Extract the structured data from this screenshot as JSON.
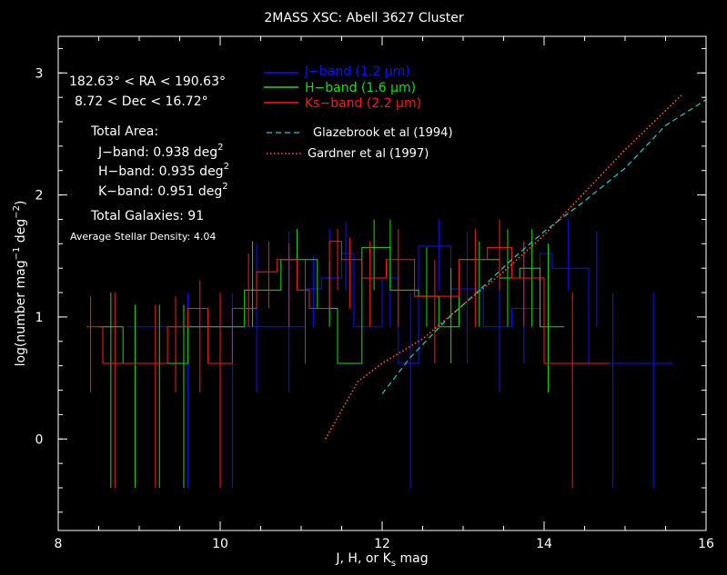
{
  "chart_data": {
    "type": "line",
    "title": "2MASS XSC: Abell 3627 Cluster",
    "xlabel_parts": {
      "pre": "J, H, or K",
      "sub": "s",
      "post": " mag"
    },
    "ylabel_parts": {
      "pre": "log(number mag",
      "sup1": "−1",
      "mid": " deg",
      "sup2": "−2",
      "post": ")"
    },
    "xlim": [
      8,
      16
    ],
    "ylim": [
      -0.75,
      3.3
    ],
    "x_ticks": [
      8,
      10,
      12,
      14,
      16
    ],
    "x_tick_labels": [
      "8",
      "10",
      "12",
      "14",
      "16"
    ],
    "y_ticks": [
      0,
      1,
      2,
      3
    ],
    "y_tick_labels": [
      "0",
      "1",
      "2",
      "3"
    ],
    "x_minor_step": 0.5,
    "y_minor_step": 0.2,
    "colors": {
      "J": "#1010ff",
      "H": "#10e010",
      "K": "#ff1a1a",
      "glazebrook": "#22cccc",
      "gardner": "#ff6020",
      "axes": "#ffffff"
    },
    "info": {
      "ra_text": "182.63° < RA < 190.63°",
      "dec_text": "8.72 < Dec < 16.72°",
      "area_title": "Total Area:",
      "area_j": "J−band: 0.938 deg",
      "area_h": "H−band: 0.935 deg",
      "area_k": "K−band: 0.951 deg",
      "area_unit_sup": "2",
      "total_galaxies": "Total Galaxies: 91",
      "stellar_density": "Average Stellar Density: 4.04"
    },
    "legend": {
      "j": "J−band (1.2 μm)",
      "h": "H−band (1.6 μm)",
      "k": "Ks−band (2.2 μm)",
      "glazebrook": "Glazebrook et al (1994)",
      "gardner": "Gardner et al (1997)"
    },
    "series": [
      {
        "name": "J-band",
        "key": "J",
        "style": "step",
        "edges": [
          8.85,
          9.4,
          10.3,
          10.65,
          11.05,
          11.25,
          11.5,
          11.65,
          12.0,
          12.2,
          12.45,
          12.85,
          13.25,
          13.6,
          13.95,
          14.1,
          14.55,
          14.95,
          15.6
        ],
        "values": [
          0.92,
          0.92,
          0.92,
          0.92,
          1.23,
          1.32,
          1.52,
          0.92,
          1.32,
          0.62,
          1.58,
          1.23,
          0.92,
          1.07,
          1.52,
          1.4,
          0.62,
          0.62
        ],
        "errors": [
          {
            "x": 9.6,
            "lo": -0.4,
            "hi": 1.2
          },
          {
            "x": 10.15,
            "lo": -0.4,
            "hi": 1.2
          },
          {
            "x": 10.45,
            "lo": 0.38,
            "hi": 1.6
          },
          {
            "x": 10.85,
            "lo": 0.38,
            "hi": 1.7
          },
          {
            "x": 11.15,
            "lo": 0.92,
            "hi": 1.5
          },
          {
            "x": 11.35,
            "lo": 0.92,
            "hi": 1.72
          },
          {
            "x": 11.55,
            "lo": 1.22,
            "hi": 1.78
          },
          {
            "x": 12.1,
            "lo": 0.92,
            "hi": 1.62
          },
          {
            "x": 12.35,
            "lo": -0.4,
            "hi": 1.2
          },
          {
            "x": 12.7,
            "lo": 1.22,
            "hi": 1.8
          },
          {
            "x": 13.05,
            "lo": 0.62,
            "hi": 1.7
          },
          {
            "x": 13.45,
            "lo": 0.38,
            "hi": 1.6
          },
          {
            "x": 13.75,
            "lo": 0.62,
            "hi": 1.62
          },
          {
            "x": 14.3,
            "lo": 1.22,
            "hi": 1.8
          },
          {
            "x": 14.65,
            "lo": 0.92,
            "hi": 1.7
          },
          {
            "x": 14.85,
            "lo": -0.4,
            "hi": 1.2
          },
          {
            "x": 15.35,
            "lo": -0.4,
            "hi": 1.2
          }
        ]
      },
      {
        "name": "H-band",
        "key": "H",
        "style": "step",
        "edges": [
          8.5,
          8.8,
          9.6,
          10.3,
          10.75,
          11.2,
          11.45,
          11.75,
          12.1,
          12.45,
          12.7,
          12.95,
          13.45,
          13.7,
          13.95,
          14.25
        ],
        "values": [
          0.92,
          0.62,
          0.92,
          1.22,
          1.47,
          1.07,
          0.62,
          1.57,
          1.22,
          1.17,
          0.92,
          1.47,
          1.32,
          1.4,
          0.92
        ],
        "errors": [
          {
            "x": 8.65,
            "lo": -0.4,
            "hi": 1.2
          },
          {
            "x": 8.95,
            "lo": -0.4,
            "hi": 1.1
          },
          {
            "x": 9.25,
            "lo": -0.4,
            "hi": 1.1
          },
          {
            "x": 9.55,
            "lo": -0.4,
            "hi": 1.1
          },
          {
            "x": 10.4,
            "lo": 0.92,
            "hi": 1.62
          },
          {
            "x": 10.95,
            "lo": 1.22,
            "hi": 1.72
          },
          {
            "x": 11.35,
            "lo": 0.92,
            "hi": 1.45
          },
          {
            "x": 11.9,
            "lo": 1.22,
            "hi": 1.8
          },
          {
            "x": 12.1,
            "lo": 1.22,
            "hi": 1.8
          },
          {
            "x": 12.55,
            "lo": 0.92,
            "hi": 1.57
          },
          {
            "x": 12.85,
            "lo": 0.62,
            "hi": 1.4
          },
          {
            "x": 13.2,
            "lo": 0.92,
            "hi": 1.62
          },
          {
            "x": 13.55,
            "lo": 0.92,
            "hi": 1.72
          },
          {
            "x": 13.85,
            "lo": 0.92,
            "hi": 1.72
          },
          {
            "x": 14.05,
            "lo": 0.38,
            "hi": 1.6
          }
        ]
      },
      {
        "name": "Ks-band",
        "key": "K",
        "style": "step",
        "edges": [
          8.35,
          8.55,
          9.35,
          9.6,
          9.85,
          10.15,
          10.45,
          10.7,
          10.95,
          11.1,
          11.35,
          11.5,
          11.75,
          12.05,
          12.4,
          12.95,
          13.3,
          13.6,
          14.0,
          14.8
        ],
        "values": [
          0.92,
          0.62,
          0.92,
          1.07,
          0.62,
          1.07,
          1.37,
          1.47,
          1.22,
          1.07,
          1.62,
          1.47,
          1.32,
          1.47,
          1.17,
          1.47,
          1.57,
          1.32,
          0.62
        ],
        "errors": [
          {
            "x": 8.4,
            "lo": 0.38,
            "hi": 1.17
          },
          {
            "x": 8.7,
            "lo": -0.4,
            "hi": 1.2
          },
          {
            "x": 9.2,
            "lo": -0.4,
            "hi": 1.1
          },
          {
            "x": 9.45,
            "lo": 0.38,
            "hi": 1.17
          },
          {
            "x": 9.75,
            "lo": 0.38,
            "hi": 1.3
          },
          {
            "x": 10.0,
            "lo": -0.4,
            "hi": 1.2
          },
          {
            "x": 10.35,
            "lo": 0.92,
            "hi": 1.52
          },
          {
            "x": 10.6,
            "lo": 1.07,
            "hi": 1.62
          },
          {
            "x": 10.85,
            "lo": 0.92,
            "hi": 1.6
          },
          {
            "x": 11.05,
            "lo": 0.62,
            "hi": 1.47
          },
          {
            "x": 11.45,
            "lo": 1.22,
            "hi": 1.72
          },
          {
            "x": 11.6,
            "lo": 1.07,
            "hi": 1.65
          },
          {
            "x": 11.85,
            "lo": 0.92,
            "hi": 1.62
          },
          {
            "x": 12.2,
            "lo": 0.92,
            "hi": 1.72
          },
          {
            "x": 12.65,
            "lo": 0.62,
            "hi": 1.47
          },
          {
            "x": 13.15,
            "lo": 0.92,
            "hi": 1.72
          },
          {
            "x": 13.45,
            "lo": 1.22,
            "hi": 1.8
          },
          {
            "x": 13.75,
            "lo": 0.92,
            "hi": 1.62
          },
          {
            "x": 14.35,
            "lo": -0.4,
            "hi": 1.2
          }
        ]
      },
      {
        "name": "Glazebrook et al (1994)",
        "key": "glazebrook",
        "style": "dashed",
        "points": [
          [
            12.0,
            0.37
          ],
          [
            12.35,
            0.67
          ],
          [
            12.8,
            0.98
          ],
          [
            13.2,
            1.22
          ],
          [
            13.6,
            1.47
          ],
          [
            14.0,
            1.7
          ],
          [
            14.5,
            1.95
          ],
          [
            15.0,
            2.22
          ],
          [
            15.5,
            2.57
          ],
          [
            16.0,
            2.78
          ]
        ]
      },
      {
        "name": "Gardner et al (1997)",
        "key": "gardner",
        "style": "dotted",
        "points": [
          [
            11.3,
            0.0
          ],
          [
            11.7,
            0.47
          ],
          [
            12.0,
            0.62
          ],
          [
            12.5,
            0.82
          ],
          [
            13.0,
            1.1
          ],
          [
            13.5,
            1.37
          ],
          [
            14.0,
            1.67
          ],
          [
            14.5,
            2.02
          ],
          [
            15.0,
            2.37
          ],
          [
            15.7,
            2.82
          ]
        ]
      }
    ]
  }
}
